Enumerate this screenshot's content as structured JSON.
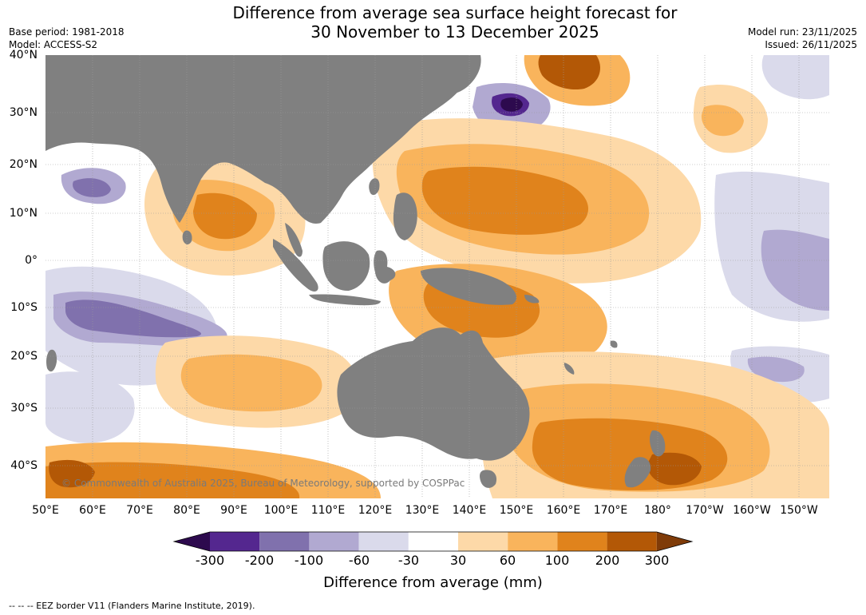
{
  "header": {
    "title_line1": "Difference from average sea surface height forecast for",
    "title_line2": "30 November to 13 December 2025",
    "base_period": "Base period: 1981-2018",
    "model": "Model: ACCESS-S2",
    "model_run": "Model run: 23/11/2025",
    "issued": "Issued: 26/11/2025"
  },
  "map": {
    "lat_labels": [
      "40°N",
      "30°N",
      "20°N",
      "10°N",
      "0°",
      "10°S",
      "20°S",
      "30°S",
      "40°S"
    ],
    "lon_labels": [
      "50°E",
      "60°E",
      "70°E",
      "80°E",
      "90°E",
      "100°E",
      "110°E",
      "120°E",
      "130°E",
      "140°E",
      "150°E",
      "160°E",
      "170°E",
      "180°",
      "170°W",
      "160°W",
      "150°W"
    ],
    "copyright": "© Commonwealth of Australia 2025, Bureau of Meteorology, supported by COSPPac",
    "land_color": "#808080",
    "grid_color": "#9a9a9a"
  },
  "legend": {
    "ticks": [
      "-300",
      "-200",
      "-100",
      "-60",
      "-30",
      "30",
      "60",
      "100",
      "200",
      "300"
    ],
    "bin_colors": [
      "#2d0a4e",
      "#54278f",
      "#8071ad",
      "#b1a9d1",
      "#dadaeb",
      "#ffffff",
      "#fdd9a8",
      "#f9b45c",
      "#e0831c",
      "#b35806",
      "#7f3b08"
    ],
    "label": "Difference from average (mm)"
  },
  "footer": {
    "text": "--  --  -- EEZ border V11 (Flanders Marine Institute, 2019)."
  }
}
